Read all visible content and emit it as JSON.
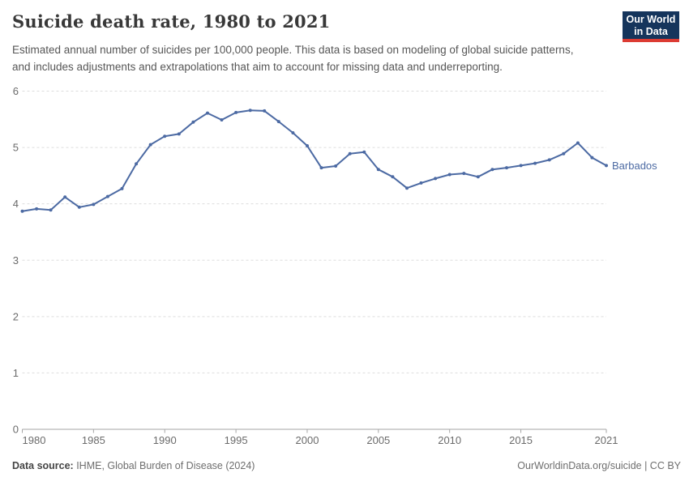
{
  "header": {
    "title": "Suicide death rate, 1980 to 2021",
    "logo": {
      "line1": "Our World",
      "line2": "in Data"
    }
  },
  "subtitle": "Estimated annual number of suicides per 100,000 people. This data is based on modeling of global suicide patterns, and includes adjustments and extrapolations that aim to account for missing data and underreporting.",
  "chart_data": {
    "type": "line",
    "title": "Suicide death rate, 1980 to 2021",
    "xlabel": "",
    "ylabel": "",
    "xlim": [
      1980,
      2021
    ],
    "ylim": [
      0,
      6
    ],
    "x_ticks": [
      1980,
      1985,
      1990,
      1995,
      2000,
      2005,
      2010,
      2015,
      2021
    ],
    "y_ticks": [
      0,
      1,
      2,
      3,
      4,
      5,
      6
    ],
    "grid": "horizontal-dashed",
    "legend_position": "end-of-line",
    "x": [
      1980,
      1981,
      1982,
      1983,
      1984,
      1985,
      1986,
      1987,
      1988,
      1989,
      1990,
      1991,
      1992,
      1993,
      1994,
      1995,
      1996,
      1997,
      1998,
      1999,
      2000,
      2001,
      2002,
      2003,
      2004,
      2005,
      2006,
      2007,
      2008,
      2009,
      2010,
      2011,
      2012,
      2013,
      2014,
      2015,
      2016,
      2017,
      2018,
      2019,
      2020,
      2021
    ],
    "series": [
      {
        "name": "Barbados",
        "color": "#4c6aa3",
        "values": [
          3.87,
          3.91,
          3.89,
          4.12,
          3.94,
          3.99,
          4.13,
          4.27,
          4.71,
          5.05,
          5.2,
          5.24,
          5.45,
          5.61,
          5.49,
          5.62,
          5.66,
          5.65,
          5.46,
          5.26,
          5.03,
          4.64,
          4.67,
          4.89,
          4.92,
          4.61,
          4.48,
          4.28,
          4.37,
          4.45,
          4.52,
          4.54,
          4.48,
          4.61,
          4.64,
          4.68,
          4.72,
          4.78,
          4.89,
          5.08,
          4.82,
          4.68
        ]
      }
    ]
  },
  "colors": {
    "line": "#4c6aa3",
    "grid": "#dddddd",
    "axis": "#a5a5a5",
    "tick_text": "#6b6b6b",
    "logo_navy": "#15355c",
    "logo_red": "#dc3b33"
  },
  "footer": {
    "source_label": "Data source:",
    "source_text": " IHME, Global Burden of Disease (2024)",
    "credit": "OurWorldinData.org/suicide | CC BY"
  }
}
